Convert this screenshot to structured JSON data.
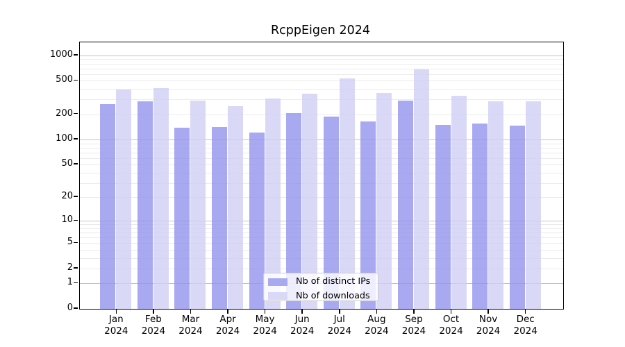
{
  "chart_data": {
    "type": "bar",
    "title": "RcppEigen 2024",
    "year": "2024",
    "months": [
      "Jan",
      "Feb",
      "Mar",
      "Apr",
      "May",
      "Jun",
      "Jul",
      "Aug",
      "Sep",
      "Oct",
      "Nov",
      "Dec"
    ],
    "categories": [
      "Jan 2024",
      "Feb 2024",
      "Mar 2024",
      "Apr 2024",
      "May 2024",
      "Jun 2024",
      "Jul 2024",
      "Aug 2024",
      "Sep 2024",
      "Oct 2024",
      "Nov 2024",
      "Dec 2024"
    ],
    "series": [
      {
        "name": "Nb of distinct IPs",
        "color_solid": "#a9a9f1",
        "color_translucent": "rgba(147,147,238,0.8)",
        "values": [
          264,
          283,
          138,
          140,
          121,
          208,
          187,
          165,
          291,
          150,
          155,
          147
        ]
      },
      {
        "name": "Nb of downloads",
        "color_solid": "#d9d9f7",
        "color_translucent": "rgba(208,208,245,0.8)",
        "values": [
          396,
          412,
          290,
          252,
          310,
          352,
          537,
          357,
          680,
          331,
          284,
          284
        ]
      }
    ],
    "y_scale": "log10(1+v)",
    "y_ticks": [
      0,
      1,
      2,
      5,
      10,
      20,
      50,
      100,
      200,
      500,
      1000
    ],
    "y_major_gridlines": [
      1,
      10,
      100,
      1000
    ],
    "y_minor_gridlines": [
      2,
      3,
      4,
      5,
      6,
      7,
      8,
      9,
      20,
      30,
      40,
      50,
      60,
      70,
      80,
      90,
      200,
      300,
      400,
      500,
      600,
      700,
      800,
      900
    ],
    "ylim": [
      0,
      1430
    ],
    "xlabel": "",
    "ylabel": "",
    "grid": true,
    "legend_position": "bottom-center",
    "colors": {
      "major_gridline": "#c3c3c3",
      "minor_gridline": "#ebebeb",
      "axis": "#000000",
      "background": "#ffffff"
    }
  }
}
